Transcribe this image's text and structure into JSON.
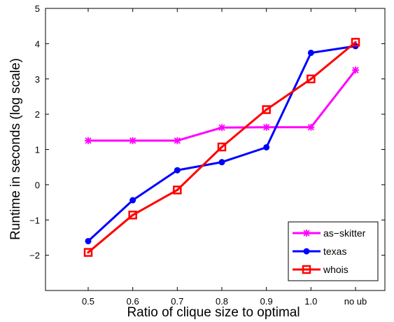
{
  "chart_data": {
    "type": "line",
    "title": "",
    "xlabel": "Ratio of clique size to optimal",
    "ylabel": "Runtime in seconds (log scale)",
    "categories": [
      "0.5",
      "0.6",
      "0.7",
      "0.8",
      "0.9",
      "1.0",
      "no ub"
    ],
    "ylim": [
      -3,
      5
    ],
    "yticks": [
      -2,
      -1,
      0,
      1,
      2,
      3,
      4,
      5
    ],
    "grid": false,
    "legend_position": "bottom-right",
    "series": [
      {
        "name": "as−skitter",
        "color": "#ff00ff",
        "marker": "x-star",
        "values": [
          1.25,
          1.25,
          1.25,
          1.62,
          1.63,
          1.63,
          3.25
        ]
      },
      {
        "name": "texas",
        "color": "#0000ff",
        "marker": "circle",
        "values": [
          -1.6,
          -0.44,
          0.41,
          0.64,
          1.06,
          3.74,
          3.93
        ]
      },
      {
        "name": "whois",
        "color": "#ff0000",
        "marker": "square",
        "values": [
          -1.92,
          -0.86,
          -0.15,
          1.07,
          2.13,
          3.0,
          4.04
        ]
      }
    ]
  }
}
